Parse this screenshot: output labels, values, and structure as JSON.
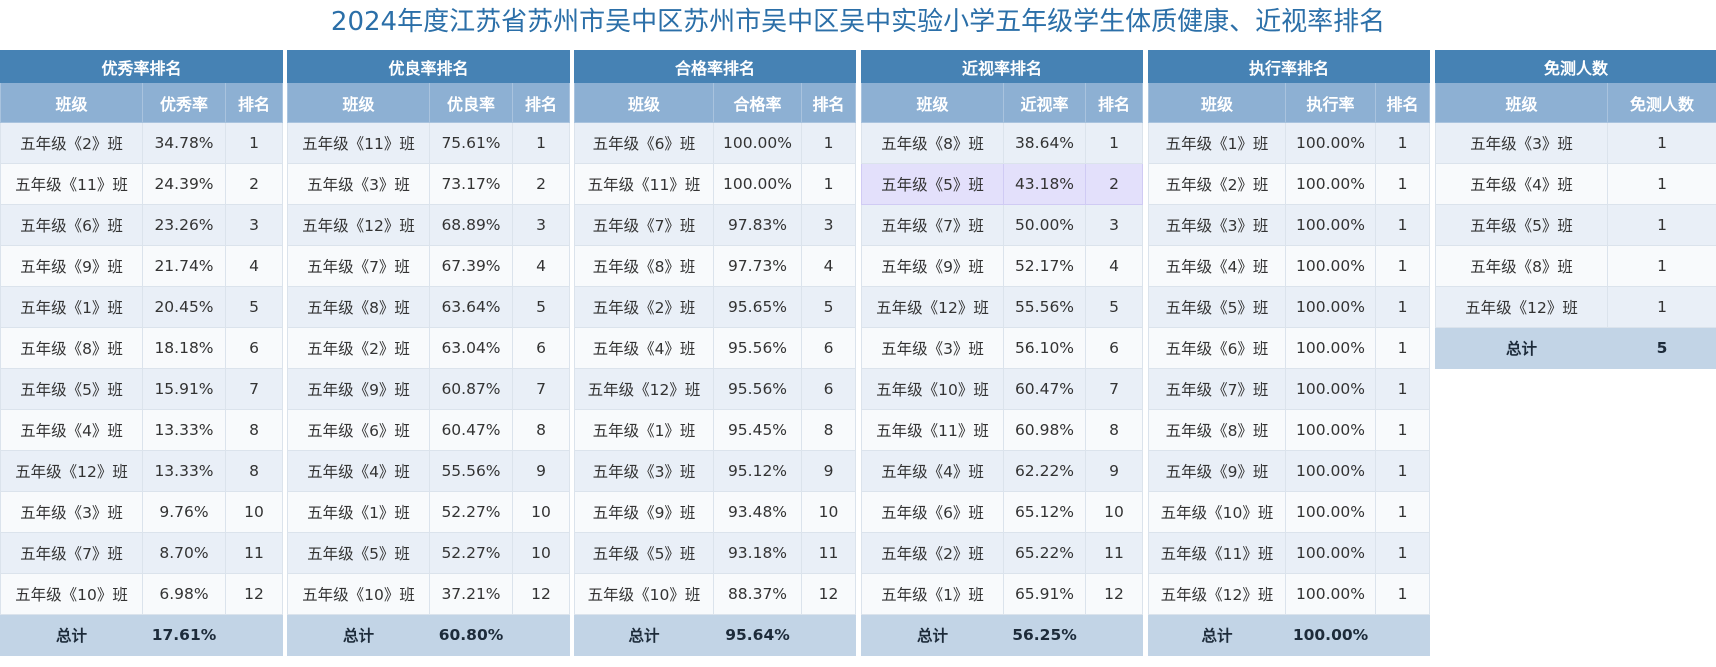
{
  "title": "2024年度江苏省苏州市吴中区苏州市吴中区吴中实验小学五年级学生体质健康、近视率排名",
  "colors": {
    "title": "#2b6fa8",
    "group_header_bg": "#4682b4",
    "column_header_bg": "#8db0d3",
    "row_odd_bg": "#e9eff7",
    "row_even_bg": "#f8fafc",
    "highlight_row_bg": "#e3e0fb",
    "total_row_bg": "#c2d4e6"
  },
  "tables": {
    "excellent": {
      "group": "优秀率排名",
      "columns": [
        "班级",
        "优秀率",
        "排名"
      ],
      "rows": [
        [
          "五年级《2》班",
          "34.78%",
          "1"
        ],
        [
          "五年级《11》班",
          "24.39%",
          "2"
        ],
        [
          "五年级《6》班",
          "23.26%",
          "3"
        ],
        [
          "五年级《9》班",
          "21.74%",
          "4"
        ],
        [
          "五年级《1》班",
          "20.45%",
          "5"
        ],
        [
          "五年级《8》班",
          "18.18%",
          "6"
        ],
        [
          "五年级《5》班",
          "15.91%",
          "7"
        ],
        [
          "五年级《4》班",
          "13.33%",
          "8"
        ],
        [
          "五年级《12》班",
          "13.33%",
          "8"
        ],
        [
          "五年级《3》班",
          "9.76%",
          "10"
        ],
        [
          "五年级《7》班",
          "8.70%",
          "11"
        ],
        [
          "五年级《10》班",
          "6.98%",
          "12"
        ]
      ],
      "total": [
        "总计",
        "17.61%",
        ""
      ]
    },
    "good": {
      "group": "优良率排名",
      "columns": [
        "班级",
        "优良率",
        "排名"
      ],
      "rows": [
        [
          "五年级《11》班",
          "75.61%",
          "1"
        ],
        [
          "五年级《3》班",
          "73.17%",
          "2"
        ],
        [
          "五年级《12》班",
          "68.89%",
          "3"
        ],
        [
          "五年级《7》班",
          "67.39%",
          "4"
        ],
        [
          "五年级《8》班",
          "63.64%",
          "5"
        ],
        [
          "五年级《2》班",
          "63.04%",
          "6"
        ],
        [
          "五年级《9》班",
          "60.87%",
          "7"
        ],
        [
          "五年级《6》班",
          "60.47%",
          "8"
        ],
        [
          "五年级《4》班",
          "55.56%",
          "9"
        ],
        [
          "五年级《1》班",
          "52.27%",
          "10"
        ],
        [
          "五年级《5》班",
          "52.27%",
          "10"
        ],
        [
          "五年级《10》班",
          "37.21%",
          "12"
        ]
      ],
      "total": [
        "总计",
        "60.80%",
        ""
      ]
    },
    "pass": {
      "group": "合格率排名",
      "columns": [
        "班级",
        "合格率",
        "排名"
      ],
      "rows": [
        [
          "五年级《6》班",
          "100.00%",
          "1"
        ],
        [
          "五年级《11》班",
          "100.00%",
          "1"
        ],
        [
          "五年级《7》班",
          "97.83%",
          "3"
        ],
        [
          "五年级《8》班",
          "97.73%",
          "4"
        ],
        [
          "五年级《2》班",
          "95.65%",
          "5"
        ],
        [
          "五年级《4》班",
          "95.56%",
          "6"
        ],
        [
          "五年级《12》班",
          "95.56%",
          "6"
        ],
        [
          "五年级《1》班",
          "95.45%",
          "8"
        ],
        [
          "五年级《3》班",
          "95.12%",
          "9"
        ],
        [
          "五年级《9》班",
          "93.48%",
          "10"
        ],
        [
          "五年级《5》班",
          "93.18%",
          "11"
        ],
        [
          "五年级《10》班",
          "88.37%",
          "12"
        ]
      ],
      "total": [
        "总计",
        "95.64%",
        ""
      ]
    },
    "myopia": {
      "group": "近视率排名",
      "columns": [
        "班级",
        "近视率",
        "排名"
      ],
      "highlight_row": 1,
      "rows": [
        [
          "五年级《8》班",
          "38.64%",
          "1"
        ],
        [
          "五年级《5》班",
          "43.18%",
          "2"
        ],
        [
          "五年级《7》班",
          "50.00%",
          "3"
        ],
        [
          "五年级《9》班",
          "52.17%",
          "4"
        ],
        [
          "五年级《12》班",
          "55.56%",
          "5"
        ],
        [
          "五年级《3》班",
          "56.10%",
          "6"
        ],
        [
          "五年级《10》班",
          "60.47%",
          "7"
        ],
        [
          "五年级《11》班",
          "60.98%",
          "8"
        ],
        [
          "五年级《4》班",
          "62.22%",
          "9"
        ],
        [
          "五年级《6》班",
          "65.12%",
          "10"
        ],
        [
          "五年级《2》班",
          "65.22%",
          "11"
        ],
        [
          "五年级《1》班",
          "65.91%",
          "12"
        ]
      ],
      "total": [
        "总计",
        "56.25%",
        ""
      ]
    },
    "execution": {
      "group": "执行率排名",
      "columns": [
        "班级",
        "执行率",
        "排名"
      ],
      "rows": [
        [
          "五年级《1》班",
          "100.00%",
          "1"
        ],
        [
          "五年级《2》班",
          "100.00%",
          "1"
        ],
        [
          "五年级《3》班",
          "100.00%",
          "1"
        ],
        [
          "五年级《4》班",
          "100.00%",
          "1"
        ],
        [
          "五年级《5》班",
          "100.00%",
          "1"
        ],
        [
          "五年级《6》班",
          "100.00%",
          "1"
        ],
        [
          "五年级《7》班",
          "100.00%",
          "1"
        ],
        [
          "五年级《8》班",
          "100.00%",
          "1"
        ],
        [
          "五年级《9》班",
          "100.00%",
          "1"
        ],
        [
          "五年级《10》班",
          "100.00%",
          "1"
        ],
        [
          "五年级《11》班",
          "100.00%",
          "1"
        ],
        [
          "五年级《12》班",
          "100.00%",
          "1"
        ]
      ],
      "total": [
        "总计",
        "100.00%",
        ""
      ]
    },
    "exempt": {
      "group": "免测人数",
      "columns": [
        "班级",
        "免测人数"
      ],
      "rows": [
        [
          "五年级《3》班",
          "1"
        ],
        [
          "五年级《4》班",
          "1"
        ],
        [
          "五年级《5》班",
          "1"
        ],
        [
          "五年级《8》班",
          "1"
        ],
        [
          "五年级《12》班",
          "1"
        ]
      ],
      "total": [
        "总计",
        "5"
      ]
    }
  }
}
